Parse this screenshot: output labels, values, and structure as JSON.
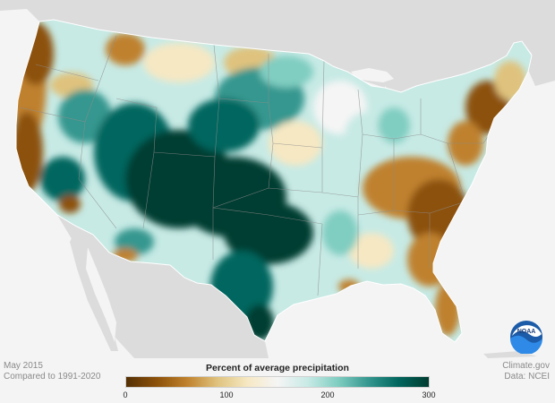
{
  "legend": {
    "title": "Percent of average precipitation",
    "ticks": [
      "0",
      "100",
      "200",
      "300"
    ],
    "range": [
      0,
      300
    ],
    "colors": [
      "#543005",
      "#8c510a",
      "#bf812d",
      "#dfc27d",
      "#f6e8c3",
      "#f5f5f5",
      "#c7eae5",
      "#80cdc1",
      "#35978f",
      "#01665e",
      "#003c30"
    ]
  },
  "meta": {
    "date": "May 2015",
    "compared": "Compared to 1991-2020",
    "source": "Climate.gov",
    "data_credit": "Data: NCEI"
  },
  "logo": {
    "text": "NOAA",
    "icon": "noaa-logo-icon"
  }
}
